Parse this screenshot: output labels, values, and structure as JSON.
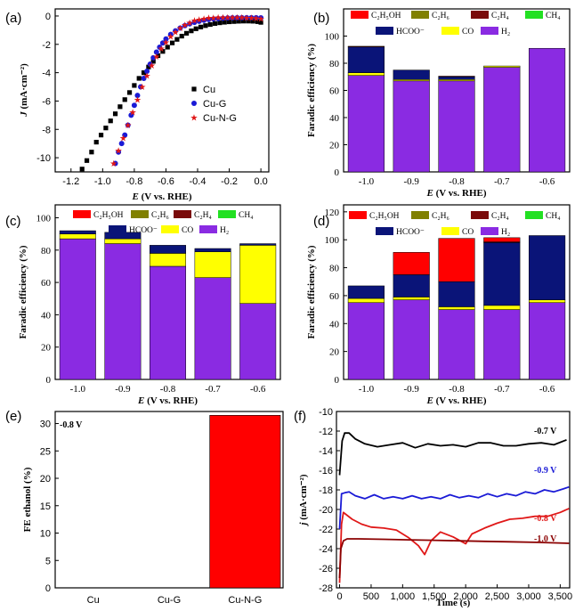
{
  "chart_data": [
    {
      "panel": "(a)",
      "type": "scatter",
      "xlabel": "E (V vs. RHE)",
      "ylabel": "J (mA·cm⁻²)",
      "xlim": [
        -1.3,
        0.05
      ],
      "ylim": [
        -11,
        0.5
      ],
      "xticks": [
        "-1.2",
        "-1.0",
        "-0.8",
        "-0.6",
        "-0.4",
        "-0.2",
        "0.0"
      ],
      "yticks": [
        "0",
        "-2",
        "-4",
        "-6",
        "-8",
        "-10"
      ],
      "legend_position": "center-right",
      "series": [
        {
          "name": "Cu",
          "color": "#000000",
          "marker": "square",
          "x": [
            -1.13,
            -1.1,
            -1.07,
            -1.04,
            -1.01,
            -0.98,
            -0.95,
            -0.92,
            -0.89,
            -0.86,
            -0.83,
            -0.8,
            -0.77,
            -0.74,
            -0.71,
            -0.68,
            -0.65,
            -0.62,
            -0.59,
            -0.56,
            -0.53,
            -0.5,
            -0.47,
            -0.44,
            -0.41,
            -0.38,
            -0.35,
            -0.32,
            -0.29,
            -0.26,
            -0.23,
            -0.2,
            -0.17,
            -0.14,
            -0.11,
            -0.08,
            -0.05,
            -0.02,
            0.0
          ],
          "y": [
            -10.8,
            -10.2,
            -9.6,
            -8.9,
            -8.4,
            -7.9,
            -7.4,
            -6.9,
            -6.4,
            -5.9,
            -5.4,
            -4.9,
            -4.4,
            -4.0,
            -3.6,
            -3.2,
            -2.8,
            -2.5,
            -2.2,
            -1.9,
            -1.65,
            -1.42,
            -1.22,
            -1.05,
            -0.9,
            -0.78,
            -0.68,
            -0.6,
            -0.53,
            -0.48,
            -0.44,
            -0.41,
            -0.39,
            -0.37,
            -0.36,
            -0.36,
            -0.37,
            -0.4,
            -0.45
          ]
        },
        {
          "name": "Cu-G",
          "color": "#1a1ad6",
          "marker": "circle",
          "x": [
            -0.92,
            -0.9,
            -0.88,
            -0.86,
            -0.84,
            -0.82,
            -0.8,
            -0.78,
            -0.76,
            -0.74,
            -0.72,
            -0.7,
            -0.68,
            -0.66,
            -0.64,
            -0.62,
            -0.6,
            -0.57,
            -0.54,
            -0.51,
            -0.48,
            -0.45,
            -0.42,
            -0.39,
            -0.36,
            -0.33,
            -0.3,
            -0.27,
            -0.24,
            -0.21,
            -0.18,
            -0.15,
            -0.12,
            -0.09,
            -0.06,
            -0.03,
            0.0
          ],
          "y": [
            -10.4,
            -9.6,
            -9.0,
            -8.4,
            -7.7,
            -7.0,
            -6.3,
            -5.6,
            -5.0,
            -4.4,
            -3.9,
            -3.4,
            -2.95,
            -2.55,
            -2.2,
            -1.9,
            -1.62,
            -1.3,
            -1.05,
            -0.85,
            -0.68,
            -0.55,
            -0.45,
            -0.37,
            -0.3,
            -0.25,
            -0.21,
            -0.18,
            -0.16,
            -0.14,
            -0.13,
            -0.12,
            -0.12,
            -0.12,
            -0.12,
            -0.12,
            -0.13
          ]
        },
        {
          "name": "Cu-N-G",
          "color": "#e01818",
          "marker": "star",
          "x": [
            -0.93,
            -0.9,
            -0.87,
            -0.84,
            -0.81,
            -0.78,
            -0.75,
            -0.72,
            -0.69,
            -0.66,
            -0.63,
            -0.6,
            -0.57,
            -0.54,
            -0.51,
            -0.48,
            -0.45,
            -0.42,
            -0.39,
            -0.36,
            -0.33,
            -0.3,
            -0.27,
            -0.24,
            -0.21,
            -0.18,
            -0.15,
            -0.12,
            -0.09,
            -0.06,
            -0.03,
            0.0
          ],
          "y": [
            -10.4,
            -9.5,
            -8.6,
            -7.7,
            -6.8,
            -5.9,
            -5.0,
            -4.2,
            -3.5,
            -2.85,
            -2.3,
            -1.85,
            -1.45,
            -1.12,
            -0.85,
            -0.63,
            -0.46,
            -0.33,
            -0.24,
            -0.18,
            -0.14,
            -0.12,
            -0.11,
            -0.1,
            -0.1,
            -0.1,
            -0.1,
            -0.11,
            -0.12,
            -0.13,
            -0.15,
            -0.2
          ]
        }
      ]
    },
    {
      "panel": "(b)",
      "type": "bar",
      "stacked": true,
      "xlabel": "E (V vs. RHE)",
      "ylabel": "Faradic efficiency (%)",
      "categories": [
        "-1.0",
        "-0.9",
        "-0.8",
        "-0.7",
        "-0.6"
      ],
      "ylim": [
        0,
        120
      ],
      "yticks": [
        "0",
        "20",
        "40",
        "60",
        "80",
        "100"
      ],
      "series": [
        {
          "name": "H₂",
          "color": "#8a2be2",
          "values": [
            71,
            67,
            67,
            77,
            91
          ]
        },
        {
          "name": "CO",
          "color": "#ffff00",
          "values": [
            2,
            1,
            1,
            1,
            0
          ]
        },
        {
          "name": "HCOO⁻",
          "color": "#0a1478",
          "values": [
            19,
            7,
            2,
            0,
            0
          ]
        },
        {
          "name": "C₂H₄",
          "color": "#7a0a0a",
          "values": [
            0.5,
            0,
            0.5,
            0,
            0
          ]
        },
        {
          "name": "C₂H₆",
          "color": "#808000",
          "values": [
            0,
            0,
            0,
            0,
            0
          ]
        },
        {
          "name": "C₂H₅OH",
          "color": "#ff0000",
          "values": [
            0,
            0,
            0,
            0,
            0
          ]
        },
        {
          "name": "CH₄",
          "color": "#22e022",
          "values": [
            0,
            0,
            0,
            0,
            0
          ]
        }
      ]
    },
    {
      "panel": "(c)",
      "type": "bar",
      "stacked": true,
      "xlabel": "E (V vs. RHE)",
      "ylabel": "Faradic efficiency (%)",
      "categories": [
        "-1.0",
        "-0.9",
        "-0.8",
        "-0.7",
        "-0.6"
      ],
      "ylim": [
        0,
        108
      ],
      "yticks": [
        "0",
        "20",
        "40",
        "60",
        "80",
        "100"
      ],
      "series": [
        {
          "name": "H₂",
          "color": "#8a2be2",
          "values": [
            87,
            84,
            70,
            63,
            47
          ]
        },
        {
          "name": "CO",
          "color": "#ffff00",
          "values": [
            3,
            3,
            8,
            16,
            36
          ]
        },
        {
          "name": "HCOO⁻",
          "color": "#0a1478",
          "values": [
            2,
            4,
            5,
            2,
            1
          ]
        },
        {
          "name": "C₂H₄",
          "color": "#7a0a0a",
          "values": [
            0,
            0,
            0,
            0,
            0
          ]
        },
        {
          "name": "C₂H₆",
          "color": "#808000",
          "values": [
            0,
            0,
            0,
            0,
            0
          ]
        },
        {
          "name": "C₂H₅OH",
          "color": "#ff0000",
          "values": [
            0,
            0,
            0,
            0,
            0
          ]
        },
        {
          "name": "CH₄",
          "color": "#22e022",
          "values": [
            0,
            0,
            0,
            0,
            0
          ]
        }
      ]
    },
    {
      "panel": "(d)",
      "type": "bar",
      "stacked": true,
      "xlabel": "E (V vs. RHE)",
      "ylabel": "Faradic efficiency (%)",
      "categories": [
        "-1.0",
        "-0.9",
        "-0.8",
        "-0.7",
        "-0.6"
      ],
      "ylim": [
        0,
        125
      ],
      "yticks": [
        "0",
        "20",
        "40",
        "60",
        "80",
        "100",
        "120"
      ],
      "series": [
        {
          "name": "H₂",
          "color": "#8a2be2",
          "values": [
            55,
            57,
            50,
            50,
            55
          ]
        },
        {
          "name": "CO",
          "color": "#ffff00",
          "values": [
            3,
            2,
            2,
            3,
            2
          ]
        },
        {
          "name": "HCOO⁻",
          "color": "#0a1478",
          "values": [
            9,
            16,
            18,
            45,
            46
          ]
        },
        {
          "name": "C₂H₄",
          "color": "#7a0a0a",
          "values": [
            0,
            0,
            0,
            0.5,
            0
          ]
        },
        {
          "name": "C₂H₆",
          "color": "#808000",
          "values": [
            0,
            0,
            0,
            0,
            0
          ]
        },
        {
          "name": "C₂H₅OH",
          "color": "#ff0000",
          "values": [
            0,
            16,
            31,
            3,
            0
          ]
        },
        {
          "name": "CH₄",
          "color": "#22e022",
          "values": [
            0,
            0,
            0,
            0,
            0
          ]
        }
      ]
    },
    {
      "panel": "(e)",
      "type": "bar",
      "ylabel": "FE ethanol (%)",
      "annotation": "-0.8 V",
      "categories": [
        "Cu",
        "Cu-G",
        "Cu-N-G"
      ],
      "values": [
        0,
        0,
        31.5
      ],
      "ylim": [
        0,
        32.2
      ],
      "yticks": [
        "0",
        "5",
        "10",
        "15",
        "20",
        "25",
        "30"
      ],
      "color": "#ff0000"
    },
    {
      "panel": "(f)",
      "type": "line",
      "xlabel": "Time (s)",
      "ylabel": "j (mA·cm⁻²)",
      "xlim": [
        -50,
        3650
      ],
      "ylim": [
        -28,
        -10
      ],
      "xticks": [
        "0",
        "500",
        "1,000",
        "1,500",
        "2,000",
        "2,500",
        "3,000",
        "3,500"
      ],
      "yticks": [
        "-10",
        "-12",
        "-14",
        "-16",
        "-18",
        "-20",
        "-22",
        "-24",
        "-26",
        "-28"
      ],
      "series": [
        {
          "name": "-0.7 V",
          "color": "#000000",
          "x": [
            0,
            40,
            80,
            150,
            250,
            400,
            600,
            800,
            1000,
            1200,
            1400,
            1600,
            1800,
            2000,
            2200,
            2400,
            2600,
            2800,
            3000,
            3200,
            3400,
            3600
          ],
          "y": [
            -16.5,
            -13.0,
            -12.2,
            -12.2,
            -12.8,
            -13.3,
            -13.6,
            -13.4,
            -13.2,
            -13.7,
            -13.3,
            -13.5,
            -13.4,
            -13.6,
            -13.2,
            -13.2,
            -13.5,
            -13.5,
            -13.3,
            -13.2,
            -13.4,
            -12.9
          ]
        },
        {
          "name": "-0.9 V",
          "color": "#1a1ad6",
          "x": [
            0,
            30,
            80,
            150,
            250,
            400,
            550,
            700,
            850,
            1000,
            1150,
            1300,
            1450,
            1600,
            1750,
            1900,
            2050,
            2200,
            2350,
            2500,
            2650,
            2800,
            2950,
            3100,
            3250,
            3400,
            3550,
            3640
          ],
          "y": [
            -22.0,
            -18.4,
            -18.3,
            -18.2,
            -18.6,
            -18.9,
            -18.5,
            -18.9,
            -18.7,
            -18.9,
            -18.6,
            -18.9,
            -18.7,
            -18.9,
            -18.5,
            -18.8,
            -18.6,
            -18.8,
            -18.4,
            -18.7,
            -18.4,
            -18.6,
            -18.2,
            -18.4,
            -18.0,
            -18.2,
            -17.9,
            -17.7
          ]
        },
        {
          "name": "-0.8 V",
          "color": "#e01818",
          "x": [
            0,
            30,
            60,
            100,
            200,
            350,
            500,
            700,
            900,
            1100,
            1250,
            1350,
            1450,
            1600,
            1800,
            2000,
            2100,
            2300,
            2500,
            2700,
            2900,
            3100,
            3300,
            3500,
            3640
          ],
          "y": [
            -27.5,
            -21.5,
            -20.3,
            -20.5,
            -21.0,
            -21.5,
            -21.8,
            -21.9,
            -22.1,
            -22.9,
            -23.7,
            -24.6,
            -23.2,
            -22.3,
            -22.8,
            -23.5,
            -22.5,
            -21.9,
            -21.4,
            -21.0,
            -20.9,
            -20.7,
            -20.7,
            -20.3,
            -19.9
          ]
        },
        {
          "name": "-1.0 V",
          "color": "#8b0000",
          "x": [
            0,
            20,
            60,
            120,
            300,
            700,
            1100,
            1500,
            1900,
            2300,
            2700,
            3100,
            3640
          ],
          "y": [
            -27.0,
            -24.0,
            -23.2,
            -23.0,
            -23.0,
            -23.05,
            -23.1,
            -23.15,
            -23.2,
            -23.25,
            -23.3,
            -23.35,
            -23.45
          ]
        }
      ]
    }
  ]
}
